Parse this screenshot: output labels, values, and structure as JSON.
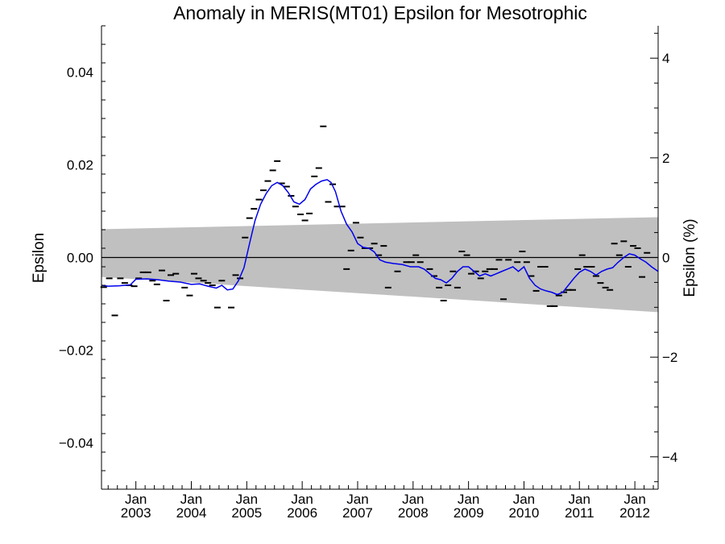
{
  "chart_data": {
    "type": "line",
    "title": "Anomaly in MERIS(MT01) Epsilon for Mesotrophic",
    "ylabel": "Epsilon",
    "ylabel_right": "Epsilon (%)",
    "xlim": [
      2002.38,
      2012.42
    ],
    "ylim": [
      -0.05,
      0.05
    ],
    "ylim_right": [
      -4.65,
      4.65
    ],
    "yticks": [
      -0.04,
      -0.02,
      0.0,
      0.02,
      0.04
    ],
    "ytick_labels": [
      "−0.04",
      "−0.02",
      "0.00",
      "0.02",
      "0.04"
    ],
    "yticks_right": [
      -4,
      -2,
      0,
      2,
      4
    ],
    "ytick_labels_right": [
      "−4",
      "−2",
      "0",
      "2",
      "4"
    ],
    "xticks": [
      2003.0,
      2004.0,
      2005.0,
      2006.0,
      2007.0,
      2008.0,
      2009.0,
      2010.0,
      2011.0,
      2012.0
    ],
    "xtick_labels": [
      {
        "month": "Jan",
        "year": "2003"
      },
      {
        "month": "Jan",
        "year": "2004"
      },
      {
        "month": "Jan",
        "year": "2005"
      },
      {
        "month": "Jan",
        "year": "2006"
      },
      {
        "month": "Jan",
        "year": "2007"
      },
      {
        "month": "Jan",
        "year": "2008"
      },
      {
        "month": "Jan",
        "year": "2009"
      },
      {
        "month": "Jan",
        "year": "2010"
      },
      {
        "month": "Jan",
        "year": "2011"
      },
      {
        "month": "Jan",
        "year": "2012"
      }
    ],
    "zero_line": 0.0,
    "uncertainty_band": {
      "color": "#c0c0c0",
      "upper": [
        [
          2002.38,
          0.0061
        ],
        [
          2012.42,
          0.0087
        ]
      ],
      "lower": [
        [
          2002.38,
          -0.0042
        ],
        [
          2012.42,
          -0.0118
        ]
      ]
    },
    "series": [
      {
        "style": "dash-markers",
        "color": "#000000",
        "points": [
          [
            2002.42,
            -0.0064
          ],
          [
            2002.52,
            -0.0045
          ],
          [
            2002.62,
            -0.0125
          ],
          [
            2002.72,
            -0.0045
          ],
          [
            2002.8,
            -0.0055
          ],
          [
            2002.88,
            -0.006
          ],
          [
            2002.97,
            -0.0062
          ],
          [
            2003.05,
            -0.0045
          ],
          [
            2003.13,
            -0.0032
          ],
          [
            2003.22,
            -0.0032
          ],
          [
            2003.3,
            -0.005
          ],
          [
            2003.38,
            -0.0058
          ],
          [
            2003.47,
            -0.0028
          ],
          [
            2003.55,
            -0.0093
          ],
          [
            2003.63,
            -0.0038
          ],
          [
            2003.72,
            -0.0035
          ],
          [
            2003.88,
            -0.0065
          ],
          [
            2003.97,
            -0.0082
          ],
          [
            2004.05,
            -0.0035
          ],
          [
            2004.13,
            -0.0045
          ],
          [
            2004.22,
            -0.005
          ],
          [
            2004.3,
            -0.0055
          ],
          [
            2004.38,
            -0.006
          ],
          [
            2004.47,
            -0.0108
          ],
          [
            2004.55,
            -0.005
          ],
          [
            2004.72,
            -0.0108
          ],
          [
            2004.8,
            -0.0038
          ],
          [
            2004.88,
            -0.0045
          ],
          [
            2004.97,
            0.0043
          ],
          [
            2005.05,
            0.0085
          ],
          [
            2005.13,
            0.0105
          ],
          [
            2005.22,
            0.0125
          ],
          [
            2005.3,
            0.0145
          ],
          [
            2005.38,
            0.0165
          ],
          [
            2005.47,
            0.0188
          ],
          [
            2005.55,
            0.0208
          ],
          [
            2005.63,
            0.016
          ],
          [
            2005.72,
            0.0153
          ],
          [
            2005.8,
            0.0133
          ],
          [
            2005.88,
            0.011
          ],
          [
            2005.97,
            0.0093
          ],
          [
            2006.05,
            0.008
          ],
          [
            2006.13,
            0.0095
          ],
          [
            2006.22,
            0.0175
          ],
          [
            2006.3,
            0.0193
          ],
          [
            2006.38,
            0.0283
          ],
          [
            2006.47,
            0.012
          ],
          [
            2006.55,
            0.0158
          ],
          [
            2006.63,
            0.011
          ],
          [
            2006.72,
            0.011
          ],
          [
            2006.8,
            -0.0025
          ],
          [
            2006.88,
            0.0015
          ],
          [
            2006.97,
            0.0075
          ],
          [
            2007.05,
            0.0043
          ],
          [
            2007.13,
            0.002
          ],
          [
            2007.22,
            0.002
          ],
          [
            2007.3,
            0.003
          ],
          [
            2007.38,
            0.0005
          ],
          [
            2007.47,
            0.0025
          ],
          [
            2007.55,
            -0.0065
          ],
          [
            2007.72,
            -0.003
          ],
          [
            2007.88,
            -0.001
          ],
          [
            2007.97,
            -0.001
          ],
          [
            2008.05,
            0.0005
          ],
          [
            2008.13,
            -0.001
          ],
          [
            2008.3,
            -0.0025
          ],
          [
            2008.38,
            -0.004
          ],
          [
            2008.47,
            -0.0065
          ],
          [
            2008.55,
            -0.0093
          ],
          [
            2008.63,
            -0.006
          ],
          [
            2008.72,
            -0.003
          ],
          [
            2008.8,
            -0.0065
          ],
          [
            2008.88,
            0.0013
          ],
          [
            2008.97,
            0.0005
          ],
          [
            2009.05,
            -0.0035
          ],
          [
            2009.13,
            -0.003
          ],
          [
            2009.22,
            -0.0045
          ],
          [
            2009.3,
            -0.003
          ],
          [
            2009.38,
            -0.0025
          ],
          [
            2009.47,
            -0.0025
          ],
          [
            2009.55,
            -0.0005
          ],
          [
            2009.63,
            -0.009
          ],
          [
            2009.72,
            -0.0005
          ],
          [
            2009.88,
            -0.001
          ],
          [
            2009.97,
            0.0013
          ],
          [
            2010.05,
            -0.001
          ],
          [
            2010.13,
            -0.004
          ],
          [
            2010.22,
            -0.0072
          ],
          [
            2010.3,
            -0.002
          ],
          [
            2010.38,
            -0.002
          ],
          [
            2010.47,
            -0.0105
          ],
          [
            2010.55,
            -0.0105
          ],
          [
            2010.63,
            -0.0082
          ],
          [
            2010.72,
            -0.0075
          ],
          [
            2010.8,
            -0.007
          ],
          [
            2010.88,
            -0.007
          ],
          [
            2010.97,
            -0.0025
          ],
          [
            2011.05,
            0.0005
          ],
          [
            2011.13,
            -0.002
          ],
          [
            2011.22,
            -0.002
          ],
          [
            2011.3,
            -0.004
          ],
          [
            2011.38,
            -0.0055
          ],
          [
            2011.47,
            -0.0065
          ],
          [
            2011.55,
            -0.007
          ],
          [
            2011.63,
            0.003
          ],
          [
            2011.72,
            0.0005
          ],
          [
            2011.8,
            0.0035
          ],
          [
            2011.88,
            -0.002
          ],
          [
            2011.97,
            0.0025
          ],
          [
            2012.05,
            0.002
          ],
          [
            2012.13,
            -0.0042
          ],
          [
            2012.22,
            0.001
          ]
        ]
      },
      {
        "style": "line",
        "color": "#0000ee",
        "points": [
          [
            2002.38,
            -0.006
          ],
          [
            2002.5,
            -0.0062
          ],
          [
            2002.7,
            -0.0061
          ],
          [
            2002.9,
            -0.0059
          ],
          [
            2003.0,
            -0.0047
          ],
          [
            2003.2,
            -0.0046
          ],
          [
            2003.4,
            -0.0048
          ],
          [
            2003.6,
            -0.0051
          ],
          [
            2003.8,
            -0.0053
          ],
          [
            2004.0,
            -0.0058
          ],
          [
            2004.15,
            -0.0057
          ],
          [
            2004.3,
            -0.0062
          ],
          [
            2004.45,
            -0.0066
          ],
          [
            2004.55,
            -0.006
          ],
          [
            2004.65,
            -0.007
          ],
          [
            2004.75,
            -0.0068
          ],
          [
            2004.85,
            -0.005
          ],
          [
            2004.95,
            -0.0022
          ],
          [
            2005.05,
            0.003
          ],
          [
            2005.15,
            0.008
          ],
          [
            2005.25,
            0.0115
          ],
          [
            2005.35,
            0.0138
          ],
          [
            2005.45,
            0.0155
          ],
          [
            2005.55,
            0.0162
          ],
          [
            2005.65,
            0.0155
          ],
          [
            2005.75,
            0.014
          ],
          [
            2005.85,
            0.012
          ],
          [
            2005.95,
            0.0115
          ],
          [
            2006.05,
            0.0125
          ],
          [
            2006.15,
            0.0148
          ],
          [
            2006.25,
            0.0158
          ],
          [
            2006.35,
            0.0165
          ],
          [
            2006.45,
            0.0168
          ],
          [
            2006.52,
            0.0162
          ],
          [
            2006.6,
            0.0142
          ],
          [
            2006.7,
            0.01
          ],
          [
            2006.8,
            0.0072
          ],
          [
            2006.9,
            0.0055
          ],
          [
            2007.0,
            0.003
          ],
          [
            2007.1,
            0.0022
          ],
          [
            2007.2,
            0.002
          ],
          [
            2007.3,
            0.0012
          ],
          [
            2007.4,
            -0.0005
          ],
          [
            2007.5,
            -0.001
          ],
          [
            2007.65,
            -0.0013
          ],
          [
            2007.8,
            -0.0015
          ],
          [
            2007.95,
            -0.002
          ],
          [
            2008.1,
            -0.002
          ],
          [
            2008.2,
            -0.0025
          ],
          [
            2008.3,
            -0.0035
          ],
          [
            2008.4,
            -0.0045
          ],
          [
            2008.5,
            -0.0048
          ],
          [
            2008.6,
            -0.0055
          ],
          [
            2008.7,
            -0.0045
          ],
          [
            2008.8,
            -0.003
          ],
          [
            2008.9,
            -0.002
          ],
          [
            2009.0,
            -0.002
          ],
          [
            2009.1,
            -0.003
          ],
          [
            2009.2,
            -0.004
          ],
          [
            2009.3,
            -0.0035
          ],
          [
            2009.4,
            -0.004
          ],
          [
            2009.5,
            -0.0035
          ],
          [
            2009.6,
            -0.003
          ],
          [
            2009.7,
            -0.0025
          ],
          [
            2009.8,
            -0.002
          ],
          [
            2009.9,
            -0.003
          ],
          [
            2010.0,
            -0.002
          ],
          [
            2010.1,
            -0.0045
          ],
          [
            2010.2,
            -0.006
          ],
          [
            2010.3,
            -0.0068
          ],
          [
            2010.4,
            -0.0072
          ],
          [
            2010.5,
            -0.0075
          ],
          [
            2010.6,
            -0.008
          ],
          [
            2010.7,
            -0.0075
          ],
          [
            2010.8,
            -0.006
          ],
          [
            2010.9,
            -0.0045
          ],
          [
            2011.0,
            -0.0032
          ],
          [
            2011.1,
            -0.0025
          ],
          [
            2011.2,
            -0.003
          ],
          [
            2011.3,
            -0.0038
          ],
          [
            2011.4,
            -0.003
          ],
          [
            2011.5,
            -0.0025
          ],
          [
            2011.6,
            -0.0022
          ],
          [
            2011.7,
            -0.001
          ],
          [
            2011.8,
            0.0
          ],
          [
            2011.9,
            0.0008
          ],
          [
            2012.0,
            0.0005
          ],
          [
            2012.1,
            -0.0003
          ],
          [
            2012.2,
            -0.001
          ],
          [
            2012.3,
            -0.002
          ],
          [
            2012.42,
            -0.003
          ]
        ]
      }
    ]
  }
}
